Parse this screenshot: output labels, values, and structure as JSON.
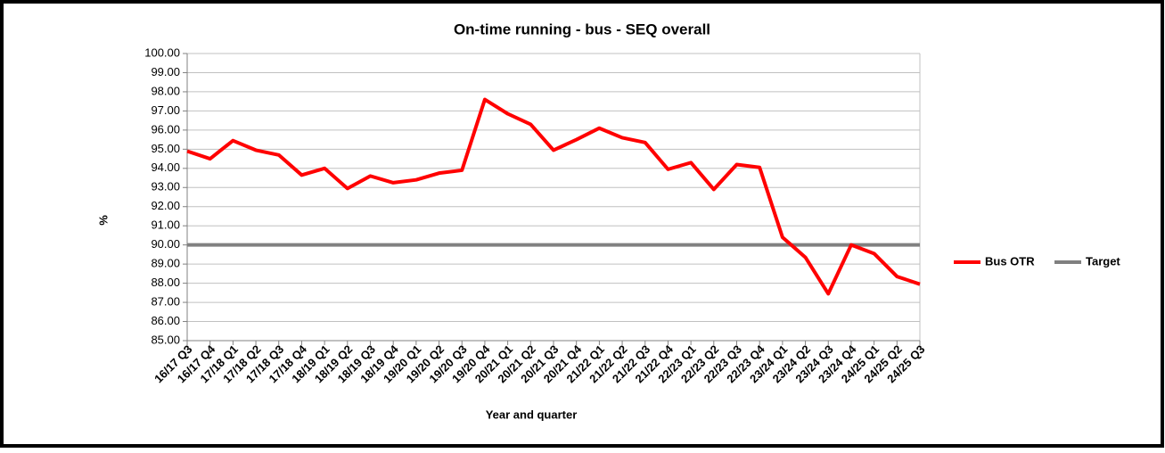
{
  "chart_data": {
    "type": "line",
    "title": "On-time running - bus - SEQ overall",
    "x_label": "Year and quarter",
    "y_label": "%",
    "categories": [
      "16/17 Q3",
      "16/17 Q4",
      "17/18 Q1",
      "17/18 Q2",
      "17/18 Q3",
      "17/18 Q4",
      "18/19 Q1",
      "18/19 Q2",
      "18/19 Q3",
      "18/19 Q4",
      "19/20 Q1",
      "19/20 Q2",
      "19/20 Q3",
      "19/20 Q4",
      "20/21 Q1",
      "20/21 Q2",
      "20/21 Q3",
      "20/21 Q4",
      "21/22 Q1",
      "21/22 Q2",
      "21/22 Q3",
      "21/22 Q4",
      "22/23 Q1",
      "22/23 Q2",
      "22/23 Q3",
      "22/23 Q4",
      "23/24 Q1",
      "23/24 Q2",
      "23/24 Q3",
      "23/24 Q4",
      "24/25 Q1",
      "24/25 Q2",
      "24/25 Q3"
    ],
    "series": [
      {
        "name": "Bus OTR",
        "color": "#ff0000",
        "values": [
          94.9,
          94.5,
          95.45,
          94.95,
          94.7,
          93.65,
          94.0,
          92.95,
          93.6,
          93.25,
          93.4,
          93.75,
          93.9,
          97.6,
          96.85,
          96.3,
          94.95,
          95.5,
          96.1,
          95.6,
          95.35,
          93.95,
          94.3,
          92.9,
          94.2,
          94.05,
          90.4,
          89.35,
          87.45,
          90.0,
          89.55,
          88.35,
          87.95
        ]
      },
      {
        "name": "Target",
        "color": "#808080",
        "values": [
          90,
          90,
          90,
          90,
          90,
          90,
          90,
          90,
          90,
          90,
          90,
          90,
          90,
          90,
          90,
          90,
          90,
          90,
          90,
          90,
          90,
          90,
          90,
          90,
          90,
          90,
          90,
          90,
          90,
          90,
          90,
          90,
          90
        ]
      }
    ],
    "ylim": [
      85,
      100
    ],
    "yticks": [
      {
        "value": 85,
        "label": "85.00"
      },
      {
        "value": 86,
        "label": "86.00"
      },
      {
        "value": 87,
        "label": "87.00"
      },
      {
        "value": 88,
        "label": "88.00"
      },
      {
        "value": 89,
        "label": "89.00"
      },
      {
        "value": 90,
        "label": "90.00"
      },
      {
        "value": 91,
        "label": "91.00"
      },
      {
        "value": 92,
        "label": "92.00"
      },
      {
        "value": 93,
        "label": "93.00"
      },
      {
        "value": 94,
        "label": "94.00"
      },
      {
        "value": 95,
        "label": "95.00"
      },
      {
        "value": 96,
        "label": "96.00"
      },
      {
        "value": 97,
        "label": "97.00"
      },
      {
        "value": 98,
        "label": "98.00"
      },
      {
        "value": 99,
        "label": "99.00"
      },
      {
        "value": 100,
        "label": "100.00"
      }
    ],
    "grid": true,
    "legend": "right"
  }
}
